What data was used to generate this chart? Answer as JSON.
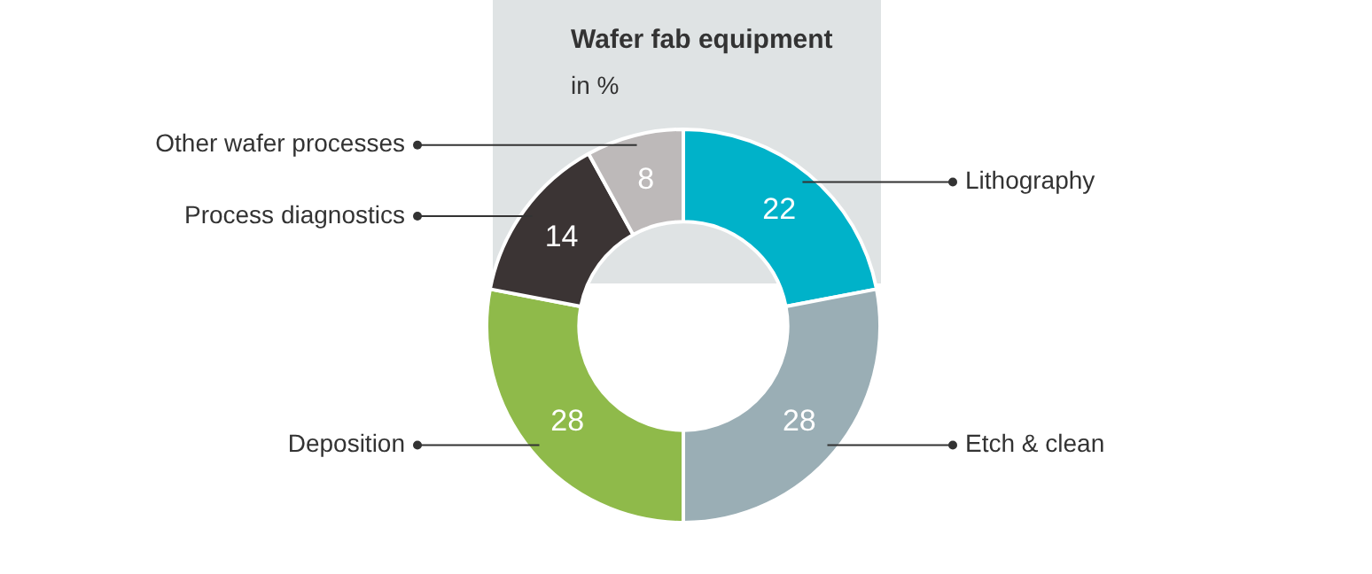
{
  "chart_data": {
    "type": "donut",
    "title": "Wafer fab equipment",
    "subtitle": "in %",
    "categories": [
      "Lithography",
      "Etch & clean",
      "Deposition",
      "Process diagnostics",
      "Other wafer processes"
    ],
    "values": [
      22,
      28,
      28,
      14,
      8
    ],
    "colors": [
      "#00b2c9",
      "#9aaeb5",
      "#8fba4a",
      "#3b3434",
      "#bdb9b9"
    ],
    "data_labels": true
  }
}
